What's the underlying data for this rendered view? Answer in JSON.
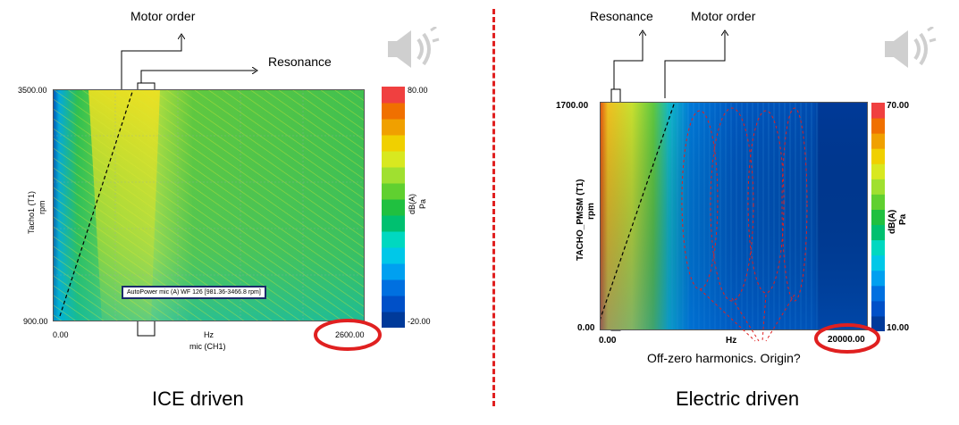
{
  "colors": {
    "accent_red": "#e02020",
    "annotation_line": "#000000",
    "legend_border": "#1a2a6b",
    "colorbar": [
      "#003a9a",
      "#0050c8",
      "#0070e0",
      "#00a0f0",
      "#00c8e8",
      "#00d8c0",
      "#00c070",
      "#20c040",
      "#60d030",
      "#a0e030",
      "#d8e820",
      "#f0d000",
      "#f0a000",
      "#f07000",
      "#f04040"
    ]
  },
  "icons": [
    "speaker-icon"
  ],
  "panels": {
    "ice": {
      "annotations": {
        "motor_order": "Motor order",
        "resonance": "Resonance"
      },
      "legend_text": "AutoPower mic (A) WF 126 [981.36-3466.8 rpm]",
      "caption": "ICE driven"
    },
    "ev": {
      "annotations": {
        "resonance": "Resonance",
        "motor_order": "Motor order",
        "note": "Off-zero harmonics. Origin?"
      },
      "caption": "Electric driven"
    }
  },
  "chart_data": [
    {
      "type": "heatmap",
      "title": "",
      "xlabel": "mic (CH1)",
      "x_unit": "Hz",
      "ylabel": "Tacho1 (T1)",
      "y_unit": "rpm",
      "xlim": [
        0,
        2600
      ],
      "ylim": [
        900,
        3500
      ],
      "x_ticks": [
        "0.00",
        "2600.00"
      ],
      "y_ticks": [
        "3500.00",
        "900.00"
      ],
      "colorbar": {
        "label": "dB(A)",
        "unit": "Pa",
        "min": -20,
        "max": 80,
        "min_label": "-20.00",
        "max_label": "80.00"
      },
      "grid": true
    },
    {
      "type": "heatmap",
      "title": "",
      "xlabel": "",
      "x_unit": "Hz",
      "ylabel": "TACHO_PMSM (T1)",
      "y_unit": "rpm",
      "xlim": [
        0,
        20000
      ],
      "ylim": [
        0,
        1700
      ],
      "x_ticks": [
        "0.00",
        "20000.00"
      ],
      "y_ticks": [
        "1700.00",
        "0.00"
      ],
      "colorbar": {
        "label": "dB(A)",
        "unit": "Pa",
        "min": 10,
        "max": 70,
        "min_label": "10.00",
        "max_label": "70.00"
      },
      "grid": false
    }
  ]
}
